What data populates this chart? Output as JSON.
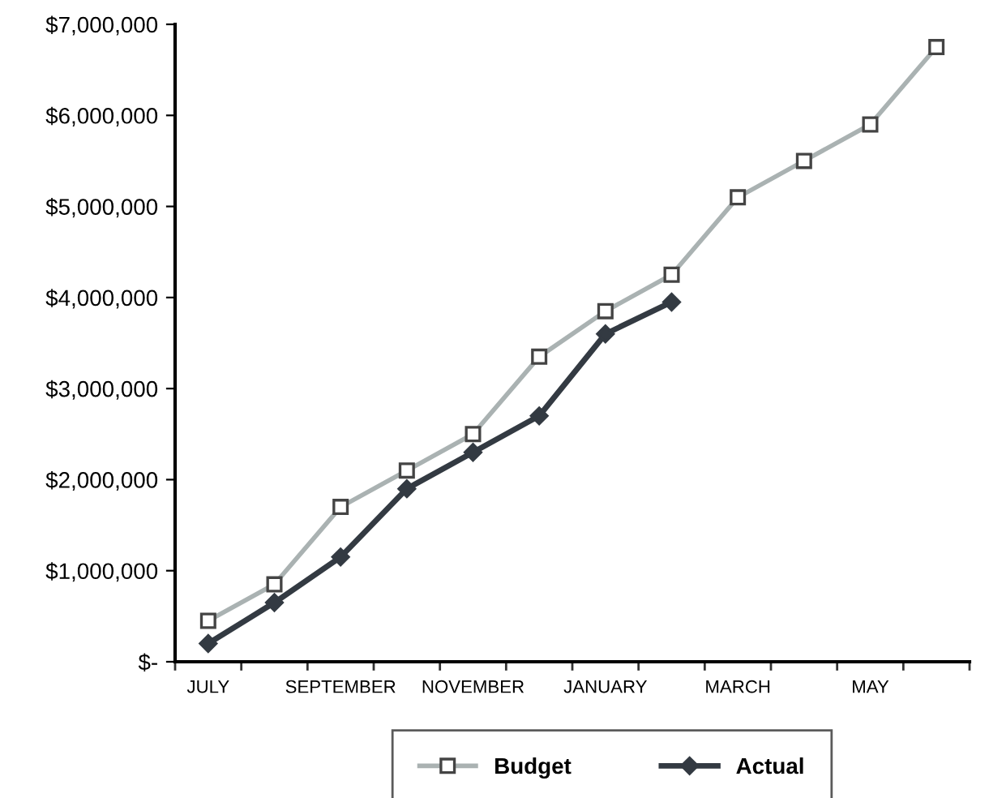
{
  "chart_data": {
    "type": "line",
    "categories": [
      "JULY",
      null,
      "SEPTEMBER",
      null,
      "NOVEMBER",
      null,
      "JANUARY",
      null,
      "MARCH",
      null,
      "MAY",
      null
    ],
    "series": [
      {
        "name": "Budget",
        "color": "#aab2b2",
        "marker": "square",
        "values": [
          450000,
          850000,
          1700000,
          2100000,
          2500000,
          3350000,
          3850000,
          4250000,
          5100000,
          5500000,
          5900000,
          6750000
        ]
      },
      {
        "name": "Actual",
        "color": "#333a42",
        "marker": "diamond",
        "values": [
          200000,
          650000,
          1150000,
          1900000,
          2300000,
          2700000,
          3600000,
          3950000,
          null,
          null,
          null,
          null
        ]
      }
    ],
    "ylim": [
      0,
      7000000
    ],
    "yticks": [
      {
        "value": 0,
        "label": "$-"
      },
      {
        "value": 1000000,
        "label": "$1,000,000"
      },
      {
        "value": 2000000,
        "label": "$2,000,000"
      },
      {
        "value": 3000000,
        "label": "$3,000,000"
      },
      {
        "value": 4000000,
        "label": "$4,000,000"
      },
      {
        "value": 5000000,
        "label": "$5,000,000"
      },
      {
        "value": 6000000,
        "label": "$6,000,000"
      },
      {
        "value": 7000000,
        "label": "$7,000,000"
      }
    ],
    "grid": false,
    "legend": "bottom"
  }
}
